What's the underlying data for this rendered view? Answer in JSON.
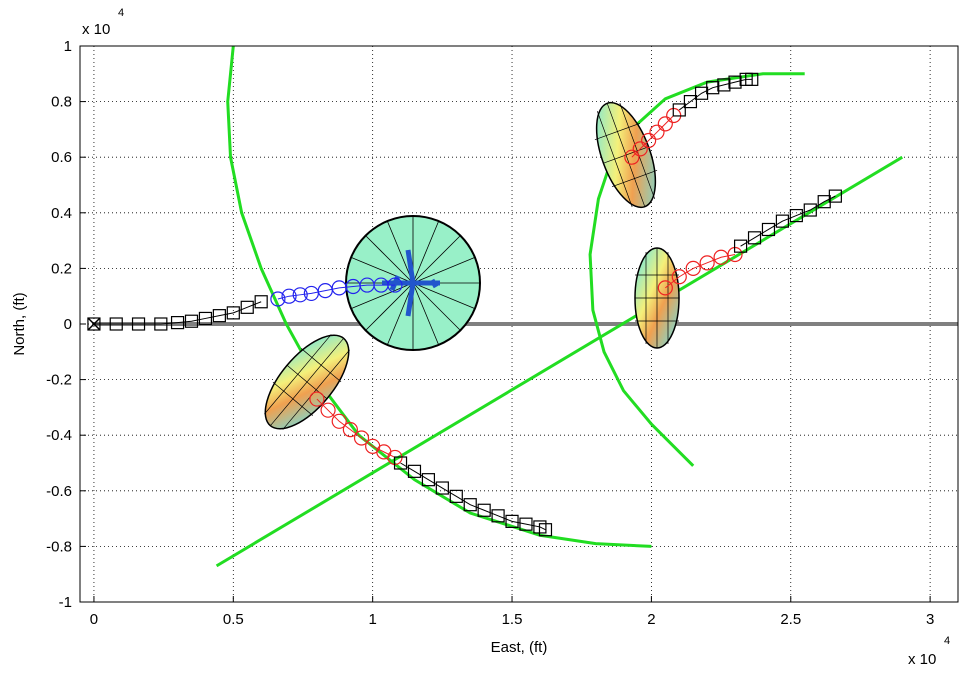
{
  "chart_data": {
    "type": "line",
    "x_label": "East, (ft)",
    "y_label": "North, (ft)",
    "x_scale_label": {
      "base": "x 10",
      "exponent": "4"
    },
    "y_scale_label": {
      "base": "x 10",
      "exponent": "4"
    },
    "xlim": [
      -0.05,
      3.1
    ],
    "ylim": [
      -1,
      1
    ],
    "xticks": [
      0,
      0.5,
      1,
      1.5,
      2,
      2.5,
      3
    ],
    "yticks": [
      -1,
      -0.8,
      -0.6,
      -0.4,
      -0.2,
      0,
      0.2,
      0.4,
      0.6,
      0.8,
      1
    ],
    "grid": true,
    "series": [
      {
        "color": "#808080",
        "marker": "none",
        "width": 4,
        "x": [
          0,
          3.1
        ],
        "values": [
          0,
          0
        ]
      },
      {
        "color": "#22dd22",
        "marker": "none",
        "width": 3,
        "x": [
          0.5,
          0.48,
          0.49,
          0.53,
          0.6,
          0.69,
          0.8,
          0.95,
          1.15,
          1.35,
          1.6,
          1.8,
          2.0
        ],
        "values": [
          1.0,
          0.8,
          0.6,
          0.4,
          0.2,
          0.0,
          -0.2,
          -0.4,
          -0.56,
          -0.68,
          -0.76,
          -0.79,
          -0.8
        ]
      },
      {
        "color": "#22dd22",
        "marker": "none",
        "width": 3,
        "x": [
          2.55,
          2.4,
          2.2,
          2.05,
          1.95,
          1.86,
          1.81,
          1.78,
          1.79,
          1.83,
          1.9,
          2.0,
          2.15
        ],
        "values": [
          0.9,
          0.9,
          0.87,
          0.81,
          0.72,
          0.6,
          0.45,
          0.25,
          0.05,
          -0.1,
          -0.24,
          -0.36,
          -0.51
        ]
      },
      {
        "color": "#22dd22",
        "marker": "none",
        "width": 3,
        "x": [
          0.44,
          2.9
        ],
        "values": [
          -0.87,
          0.6
        ]
      },
      {
        "color": "#000000",
        "marker": "square",
        "width": 1,
        "x": [
          0,
          0.08,
          0.16,
          0.24,
          0.3,
          0.35,
          0.4,
          0.45,
          0.5,
          0.55,
          0.6
        ],
        "values": [
          0,
          0,
          0,
          0,
          0.005,
          0.01,
          0.02,
          0.03,
          0.04,
          0.06,
          0.08
        ]
      },
      {
        "color": "#2222ee",
        "marker": "circle",
        "width": 1,
        "x": [
          0.66,
          0.7,
          0.74,
          0.78,
          0.83,
          0.88,
          0.93,
          0.98,
          1.03,
          1.08
        ],
        "values": [
          0.09,
          0.1,
          0.105,
          0.11,
          0.12,
          0.13,
          0.135,
          0.14,
          0.14,
          0.14
        ]
      },
      {
        "color": "#ee2222",
        "marker": "circle",
        "width": 1,
        "x": [
          0.8,
          0.84,
          0.88,
          0.92,
          0.96,
          1.0,
          1.04,
          1.08
        ],
        "values": [
          -0.27,
          -0.31,
          -0.35,
          -0.38,
          -0.41,
          -0.44,
          -0.46,
          -0.48
        ]
      },
      {
        "color": "#000000",
        "marker": "square",
        "width": 1,
        "x": [
          1.1,
          1.15,
          1.2,
          1.25,
          1.3,
          1.35,
          1.4,
          1.45,
          1.5,
          1.55,
          1.6,
          1.62
        ],
        "values": [
          -0.5,
          -0.53,
          -0.56,
          -0.59,
          -0.62,
          -0.65,
          -0.67,
          -0.69,
          -0.71,
          -0.72,
          -0.73,
          -0.74
        ]
      },
      {
        "color": "#ee2222",
        "marker": "circle",
        "width": 1,
        "x": [
          1.93,
          1.96,
          1.99,
          2.02,
          2.05,
          2.08
        ],
        "values": [
          0.6,
          0.63,
          0.66,
          0.69,
          0.72,
          0.75
        ]
      },
      {
        "color": "#000000",
        "marker": "square",
        "width": 1,
        "x": [
          2.1,
          2.14,
          2.18,
          2.22,
          2.26,
          2.3,
          2.34,
          2.36
        ],
        "values": [
          0.77,
          0.8,
          0.83,
          0.85,
          0.86,
          0.87,
          0.88,
          0.88
        ]
      },
      {
        "color": "#ee2222",
        "marker": "circle",
        "width": 1,
        "x": [
          2.05,
          2.1,
          2.15,
          2.2,
          2.25,
          2.3
        ],
        "values": [
          0.13,
          0.17,
          0.2,
          0.22,
          0.24,
          0.25
        ]
      },
      {
        "color": "#000000",
        "marker": "square",
        "width": 1,
        "x": [
          2.32,
          2.37,
          2.42,
          2.47,
          2.52,
          2.57,
          2.62,
          2.66
        ],
        "values": [
          0.28,
          0.31,
          0.34,
          0.37,
          0.39,
          0.41,
          0.44,
          0.46
        ]
      }
    ]
  }
}
